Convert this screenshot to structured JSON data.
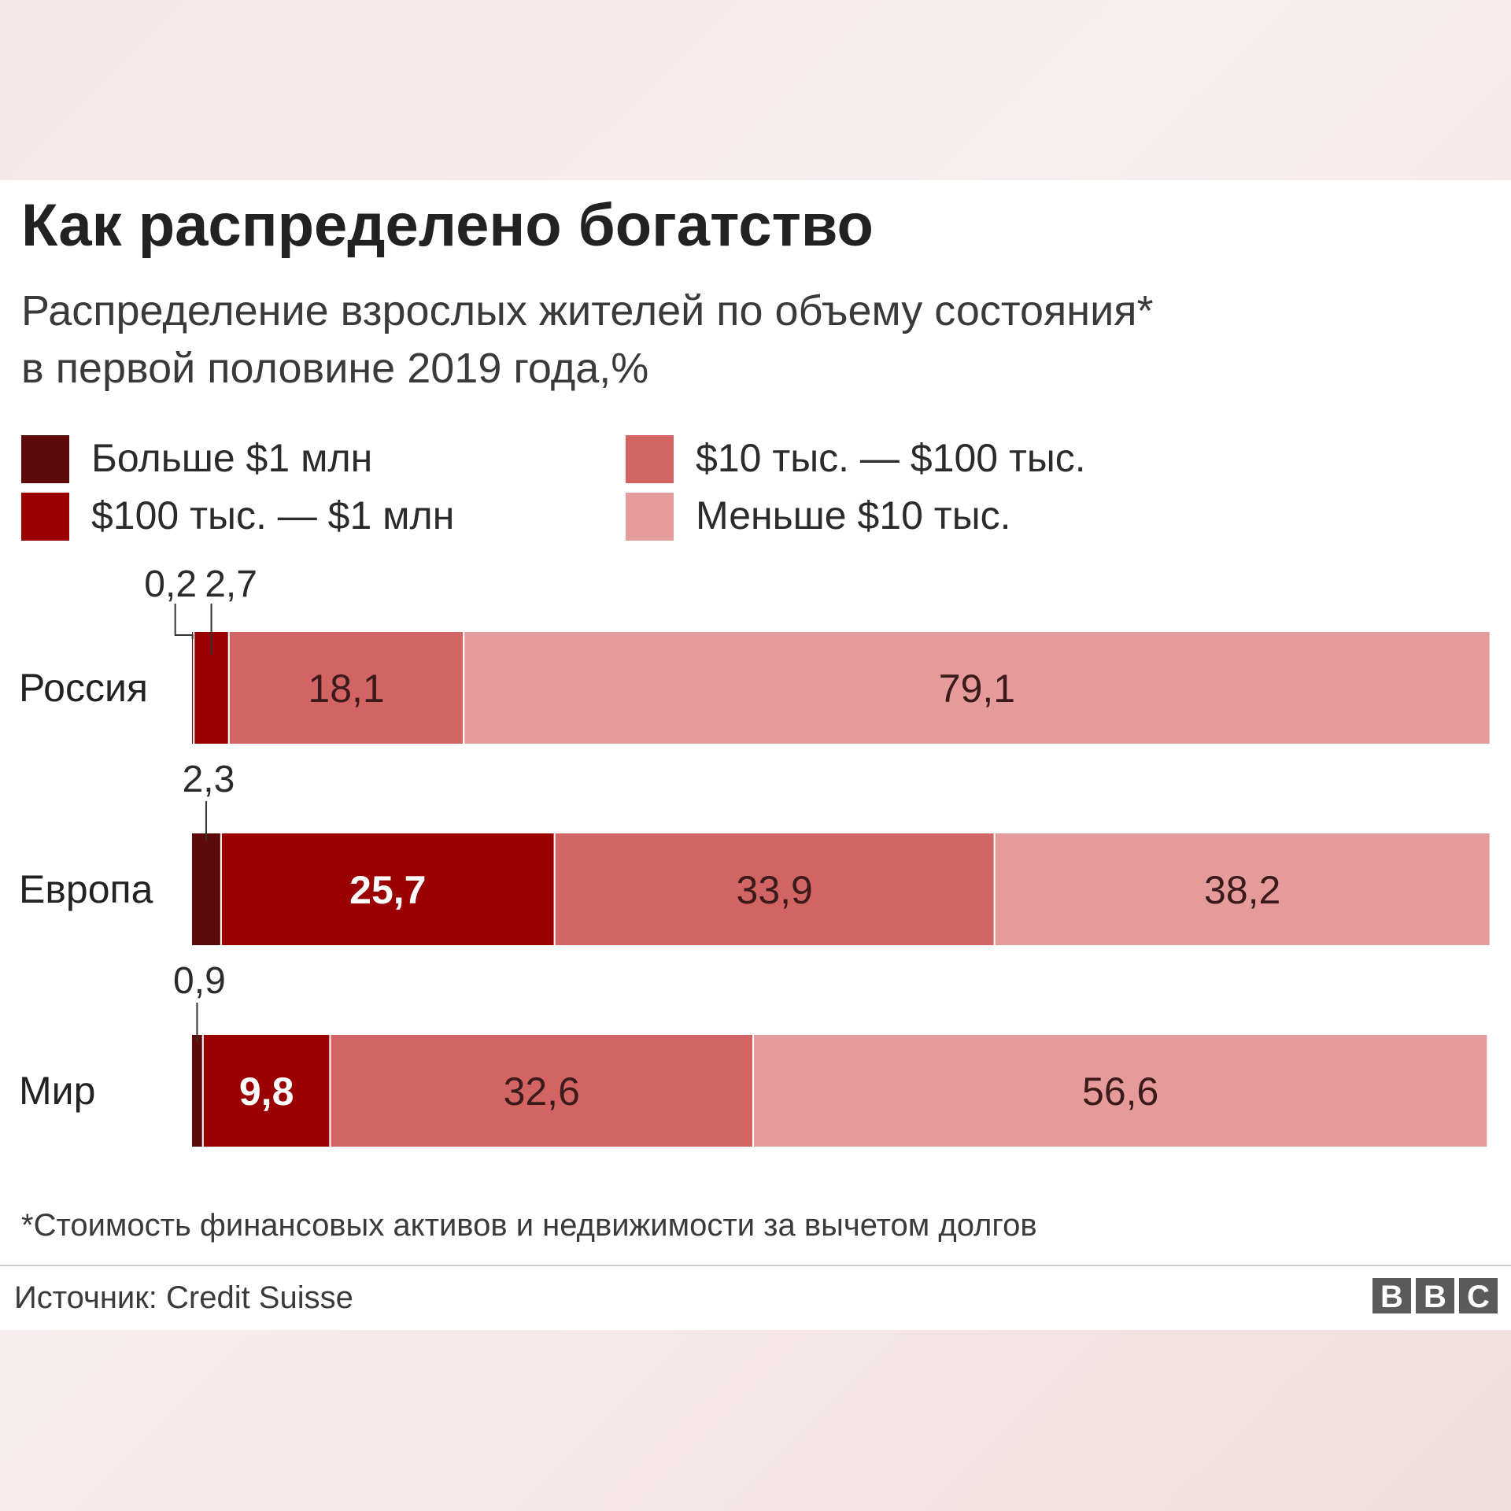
{
  "title": "Как распределено богатство",
  "subtitle_line1": "Распределение взрослых жителей по объему состояния*",
  "subtitle_line2": "в первой половине 2019 года,%",
  "footnote": "*Стоимость финансовых активов и недвижимости за вычетом долгов",
  "source": "Источник: Credit Suisse",
  "logo": [
    "B",
    "B",
    "C"
  ],
  "colors": [
    "#5e0a0a",
    "#9a0000",
    "#d36464",
    "#e69b9b"
  ],
  "chart_data": {
    "type": "bar",
    "orientation": "horizontal",
    "stacked": true,
    "unit": "%",
    "xlim": [
      0,
      100
    ],
    "legend_placement": "top",
    "categories": [
      "Россия",
      "Европа",
      "Мир"
    ],
    "series": [
      {
        "name": "Больше $1 млн",
        "values": [
          0.2,
          2.3,
          0.9
        ]
      },
      {
        "name": "$100 тыс. — $1 млн",
        "values": [
          2.7,
          25.7,
          9.8
        ]
      },
      {
        "name": "$10 тыс. — $100 тыс.",
        "values": [
          18.1,
          33.9,
          32.6
        ]
      },
      {
        "name": "Меньше $10 тыс.",
        "values": [
          79.1,
          38.2,
          56.6
        ]
      }
    ],
    "value_labels": [
      [
        "0,2",
        "2,7",
        "18,1",
        "79,1"
      ],
      [
        "2,3",
        "25,7",
        "33,9",
        "38,2"
      ],
      [
        "0,9",
        "9,8",
        "32,6",
        "56,6"
      ]
    ]
  }
}
